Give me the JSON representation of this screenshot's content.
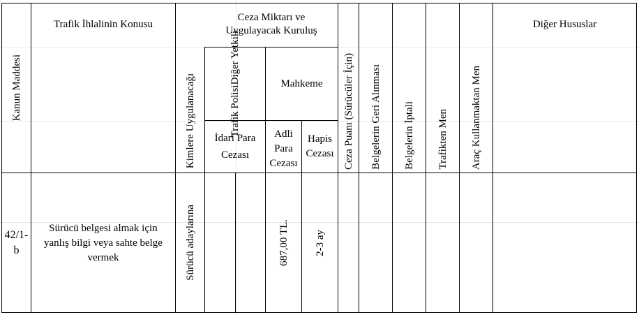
{
  "header": {
    "kanun_maddesi": "Kanun Maddesi",
    "ihlal_konusu": "Trafik İhlalinin Konusu",
    "kimlere": "Kimlere Uygulanacağı",
    "ceza_miktari_1": "Ceza Miktarı ve",
    "ceza_miktari_2": "Uygulayacak Kuruluş",
    "trafik_polisi_1": "Trafik Polisi",
    "trafik_polisi_2": "Diğer Yetkili",
    "mahkeme": "Mahkeme",
    "idari_1": "İdari Para",
    "idari_2": "Cezası",
    "adli_1": "Adli",
    "adli_2": "Para",
    "adli_3": "Cezası",
    "hapis_1": "Hapis",
    "hapis_2": "Cezası",
    "ceza_puani": "Ceza Puanı (Sürücüler İçin)",
    "geri_alinmasi": "Belgelerin Geri Alınması",
    "iptali": "Belgelerin İptali",
    "trafikten_men": "Trafikten Men",
    "arac_kullanmaktan_men": "Araç Kullanmaktan Men",
    "diger_hususlar": "Diğer Hususlar"
  },
  "row": {
    "madde_1": "42/1-",
    "madde_2": "b",
    "konu_1": "Sürücü belgesi almak için",
    "konu_2": "yanlış bilgi veya sahte belge",
    "konu_3": "vermek",
    "kimlere": "Sürücü adaylarına",
    "idari": "",
    "adli": "687,00 TL.",
    "hapis": "2-3 ay",
    "ceza_puani": "",
    "geri_alinmasi": "",
    "iptali": "",
    "trafikten_men": "",
    "arac_men": "",
    "diger": ""
  }
}
